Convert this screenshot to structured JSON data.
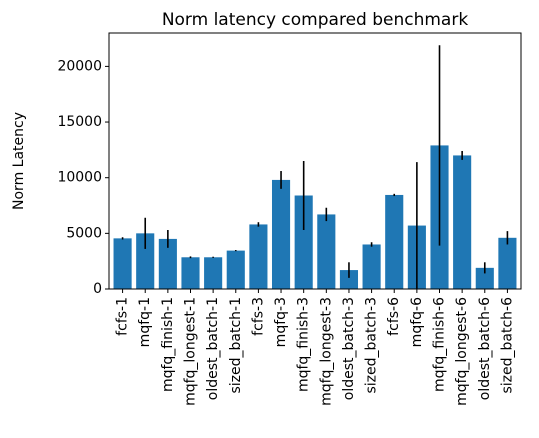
{
  "chart_data": {
    "type": "bar",
    "title": "Norm latency compared benchmark",
    "xlabel": "",
    "ylabel": "Norm Latency",
    "ylim": [
      0,
      23000
    ],
    "yticks": [
      0,
      5000,
      10000,
      15000,
      20000
    ],
    "ytick_labels": [
      "0",
      "5000",
      "10000",
      "15000",
      "20000"
    ],
    "grid": false,
    "bar_color": "#1f77b4",
    "error_color": "#000000",
    "categories": [
      "fcfs-1",
      "mqfq-1",
      "mqfq_finish-1",
      "mqfq_longest-1",
      "oldest_batch-1",
      "sized_batch-1",
      "fcfs-3",
      "mqfq-3",
      "mqfq_finish-3",
      "mqfq_longest-3",
      "oldest_batch-3",
      "sized_batch-3",
      "fcfs-6",
      "mqfq-6",
      "mqfq_finish-6",
      "mqfq_longest-6",
      "oldest_batch-6",
      "sized_batch-6"
    ],
    "values": [
      4550,
      5000,
      4500,
      2850,
      2850,
      3450,
      5800,
      9800,
      8400,
      6700,
      1700,
      4000,
      8450,
      5700,
      12900,
      12000,
      1900,
      4600
    ],
    "errors": [
      100,
      1400,
      800,
      80,
      50,
      50,
      200,
      800,
      3100,
      600,
      700,
      200,
      100,
      5700,
      9000,
      400,
      500,
      600
    ]
  }
}
